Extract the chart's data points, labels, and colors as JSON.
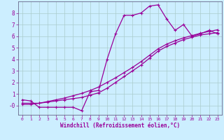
{
  "xlabel": "Windchill (Refroidissement éolien,°C)",
  "bg_color": "#cceeff",
  "grid_color": "#aacccc",
  "line_color": "#990099",
  "xlim": [
    -0.5,
    23.5
  ],
  "ylim": [
    -0.8,
    9.0
  ],
  "xticks": [
    0,
    1,
    2,
    3,
    4,
    5,
    6,
    7,
    8,
    9,
    10,
    11,
    12,
    13,
    14,
    15,
    16,
    17,
    18,
    19,
    20,
    21,
    22,
    23
  ],
  "yticks": [
    0,
    1,
    2,
    3,
    4,
    5,
    6,
    7,
    8
  ],
  "ytick_labels": [
    "-0",
    "1",
    "2",
    "3",
    "4",
    "5",
    "6",
    "7",
    "8"
  ],
  "line1_x": [
    0,
    1,
    2,
    3,
    4,
    5,
    6,
    7,
    8,
    9,
    10,
    11,
    12,
    13,
    14,
    15,
    16,
    17,
    18,
    19,
    20,
    21,
    22,
    23
  ],
  "line1_y": [
    0.5,
    0.4,
    -0.15,
    -0.15,
    -0.15,
    -0.15,
    -0.15,
    -0.45,
    1.2,
    1.3,
    4.0,
    6.2,
    7.8,
    7.8,
    8.0,
    8.6,
    8.7,
    7.5,
    6.5,
    7.0,
    6.0,
    6.2,
    6.5,
    6.2
  ],
  "line2_x": [
    0,
    1,
    2,
    3,
    4,
    5,
    6,
    7,
    8,
    9,
    10,
    11,
    12,
    13,
    14,
    15,
    16,
    17,
    18,
    19,
    20,
    21,
    22,
    23
  ],
  "line2_y": [
    0.2,
    0.2,
    0.2,
    0.3,
    0.4,
    0.5,
    0.6,
    0.7,
    0.9,
    1.1,
    1.5,
    2.0,
    2.5,
    3.0,
    3.5,
    4.1,
    4.7,
    5.1,
    5.4,
    5.7,
    5.9,
    6.1,
    6.2,
    6.3
  ],
  "line3_x": [
    0,
    1,
    2,
    3,
    4,
    5,
    6,
    7,
    8,
    9,
    10,
    11,
    12,
    13,
    14,
    15,
    16,
    17,
    18,
    19,
    20,
    21,
    22,
    23
  ],
  "line3_y": [
    0.1,
    0.1,
    0.2,
    0.35,
    0.5,
    0.65,
    0.85,
    1.05,
    1.3,
    1.6,
    2.0,
    2.4,
    2.85,
    3.3,
    3.8,
    4.35,
    4.9,
    5.3,
    5.6,
    5.85,
    6.05,
    6.25,
    6.4,
    6.55
  ]
}
